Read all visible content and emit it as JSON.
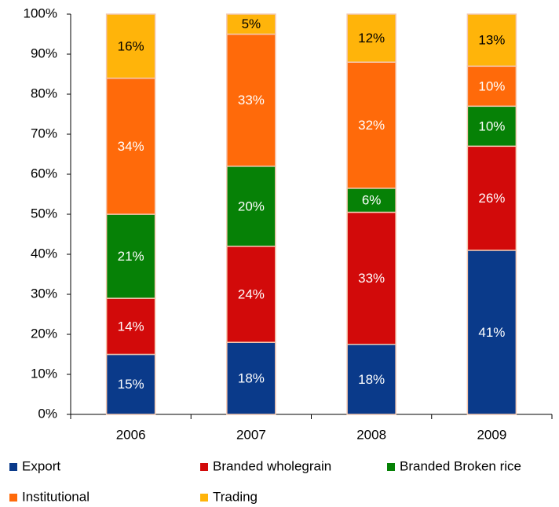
{
  "chart_data": {
    "type": "stacked_bar",
    "categories": [
      "2006",
      "2007",
      "2008",
      "2009"
    ],
    "series": [
      {
        "name": "Export",
        "color": "#0a3a8a",
        "label_color": "#ffffff",
        "values": [
          15,
          18,
          17.5,
          41
        ],
        "value_labels": [
          "15%",
          "18%",
          "18%",
          "41%"
        ]
      },
      {
        "name": "Branded wholegrain",
        "color": "#d20a0a",
        "label_color": "#ffffff",
        "values": [
          14,
          24,
          33,
          26
        ],
        "value_labels": [
          "14%",
          "24%",
          "33%",
          "26%"
        ]
      },
      {
        "name": "Branded Broken rice",
        "color": "#068106",
        "label_color": "#ffffff",
        "values": [
          21,
          20,
          6,
          10
        ],
        "value_labels": [
          "21%",
          "20%",
          "6%",
          "10%"
        ]
      },
      {
        "name": "Institutional",
        "color": "#ff6a0a",
        "label_color": "#ffffff",
        "values": [
          34,
          33,
          31.5,
          10
        ],
        "value_labels": [
          "34%",
          "33%",
          "32%",
          "10%"
        ]
      },
      {
        "name": "Trading",
        "color": "#ffb40a",
        "label_color": "#000000",
        "values": [
          16,
          5,
          12,
          13
        ],
        "value_labels": [
          "16%",
          "5%",
          "12%",
          "13%"
        ]
      }
    ],
    "ylim": [
      0,
      100
    ],
    "yticks": [
      {
        "value": 0,
        "label": "0%"
      },
      {
        "value": 10,
        "label": "10%"
      },
      {
        "value": 20,
        "label": "20%"
      },
      {
        "value": 30,
        "label": "30%"
      },
      {
        "value": 40,
        "label": "40%"
      },
      {
        "value": 50,
        "label": "50%"
      },
      {
        "value": 60,
        "label": "60%"
      },
      {
        "value": 70,
        "label": "70%"
      },
      {
        "value": 80,
        "label": "80%"
      },
      {
        "value": 90,
        "label": "90%"
      },
      {
        "value": 100,
        "label": "100%"
      }
    ]
  }
}
